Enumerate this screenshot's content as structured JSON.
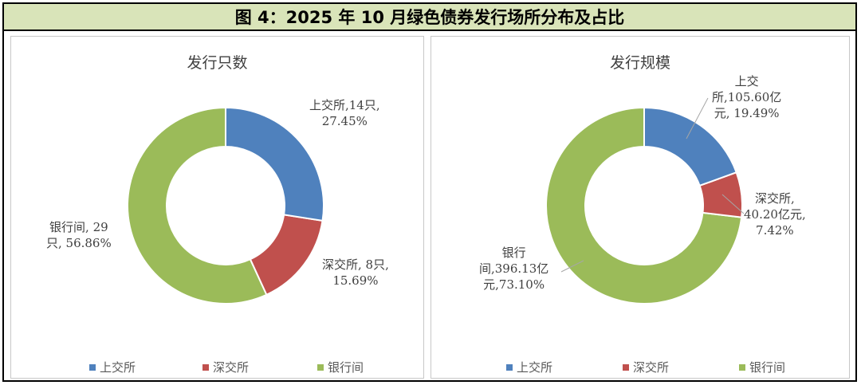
{
  "header": {
    "title": "图 4：2025 年 10 月绿色债券发行场所分布及占比"
  },
  "colors": {
    "上交所": "#4f81bd",
    "深交所": "#c0504d",
    "银行间": "#9bbb59"
  },
  "chart_data": [
    {
      "type": "pie",
      "title": "发行只数",
      "categories": [
        "上交所",
        "深交所",
        "银行间"
      ],
      "values": [
        14,
        8,
        29
      ],
      "percents": [
        27.45,
        15.69,
        56.86
      ],
      "unit": "只",
      "labels": [
        {
          "line1": "上交所,14只,",
          "line2": "27.45%"
        },
        {
          "line1": "深交所, 8只,",
          "line2": "15.69%"
        },
        {
          "line1": "银行间, 29",
          "line2": "只, 56.86%"
        }
      ],
      "legend": [
        "上交所",
        "深交所",
        "银行间"
      ],
      "legend_position": "bottom"
    },
    {
      "type": "pie",
      "title": "发行规模",
      "categories": [
        "上交所",
        "深交所",
        "银行间"
      ],
      "values": [
        105.6,
        40.2,
        396.13
      ],
      "percents": [
        19.49,
        7.42,
        73.1
      ],
      "unit": "亿元",
      "labels": [
        {
          "line1": "上交",
          "line2": "所,105.60亿",
          "line3": "元, 19.49%"
        },
        {
          "line1": "深交所,",
          "line2": "40.20亿元,",
          "line3": "7.42%"
        },
        {
          "line1": "银行",
          "line2": "间,396.13亿",
          "line3": "元,73.10%"
        }
      ],
      "legend": [
        "上交所",
        "深交所",
        "银行间"
      ],
      "legend_position": "bottom"
    }
  ]
}
